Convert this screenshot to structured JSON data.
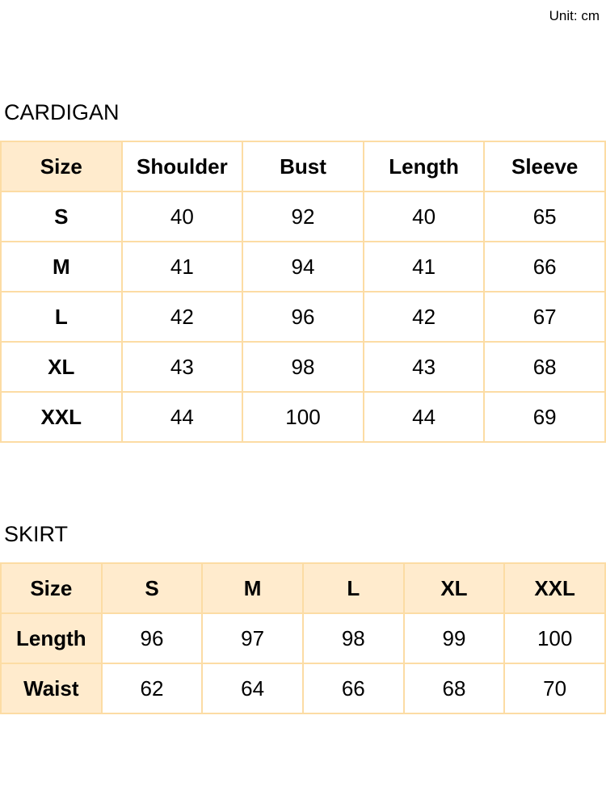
{
  "unit_label": "Unit: cm",
  "cardigan": {
    "title": "CARDIGAN",
    "headers": [
      "Size",
      "Shoulder",
      "Bust",
      "Length",
      "Sleeve"
    ],
    "rows": [
      [
        "S",
        "40",
        "92",
        "40",
        "65"
      ],
      [
        "M",
        "41",
        "94",
        "41",
        "66"
      ],
      [
        "L",
        "42",
        "96",
        "42",
        "67"
      ],
      [
        "XL",
        "43",
        "98",
        "43",
        "68"
      ],
      [
        "XXL",
        "44",
        "100",
        "44",
        "69"
      ]
    ]
  },
  "skirt": {
    "title": "SKIRT",
    "headers": [
      "Size",
      "S",
      "M",
      "L",
      "XL",
      "XXL"
    ],
    "rows": [
      [
        "Length",
        "96",
        "97",
        "98",
        "99",
        "100"
      ],
      [
        "Waist",
        "62",
        "64",
        "66",
        "68",
        "70"
      ]
    ]
  },
  "colors": {
    "header_bg": "#ffebcd",
    "border": "#fcdca4"
  }
}
